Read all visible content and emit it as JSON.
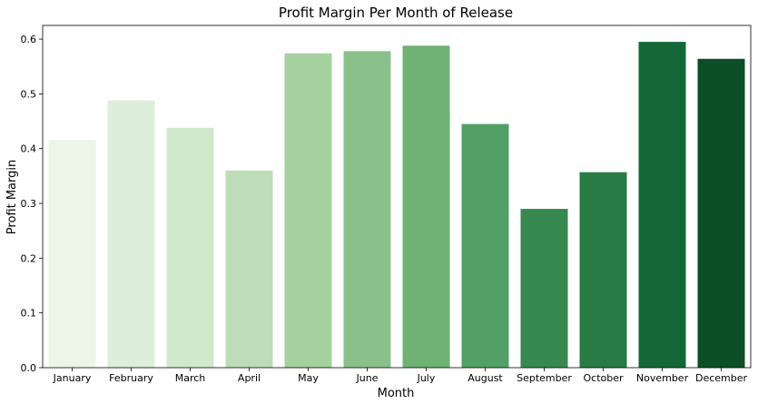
{
  "chart_data": {
    "type": "bar",
    "title": "Profit Margin Per Month of Release",
    "xlabel": "Month",
    "ylabel": "Profit Margin",
    "categories": [
      "January",
      "February",
      "March",
      "April",
      "May",
      "June",
      "July",
      "August",
      "September",
      "October",
      "November",
      "December"
    ],
    "values": [
      0.416,
      0.488,
      0.438,
      0.36,
      0.574,
      0.578,
      0.588,
      0.445,
      0.29,
      0.357,
      0.595,
      0.564
    ],
    "ylim": [
      0,
      0.625
    ],
    "yticks": [
      0.0,
      0.1,
      0.2,
      0.3,
      0.4,
      0.5,
      0.6
    ],
    "ytick_labels": [
      "0.0",
      "0.1",
      "0.2",
      "0.3",
      "0.4",
      "0.5",
      "0.6"
    ],
    "colors": [
      "#ebf6e8",
      "#ddefda",
      "#d0e9cb",
      "#bddcb7",
      "#a5d19e",
      "#8cc08a",
      "#70b174",
      "#52a066",
      "#388851",
      "#2a7a46",
      "#156737",
      "#0c4e28"
    ],
    "grid": false,
    "legend": "none"
  }
}
